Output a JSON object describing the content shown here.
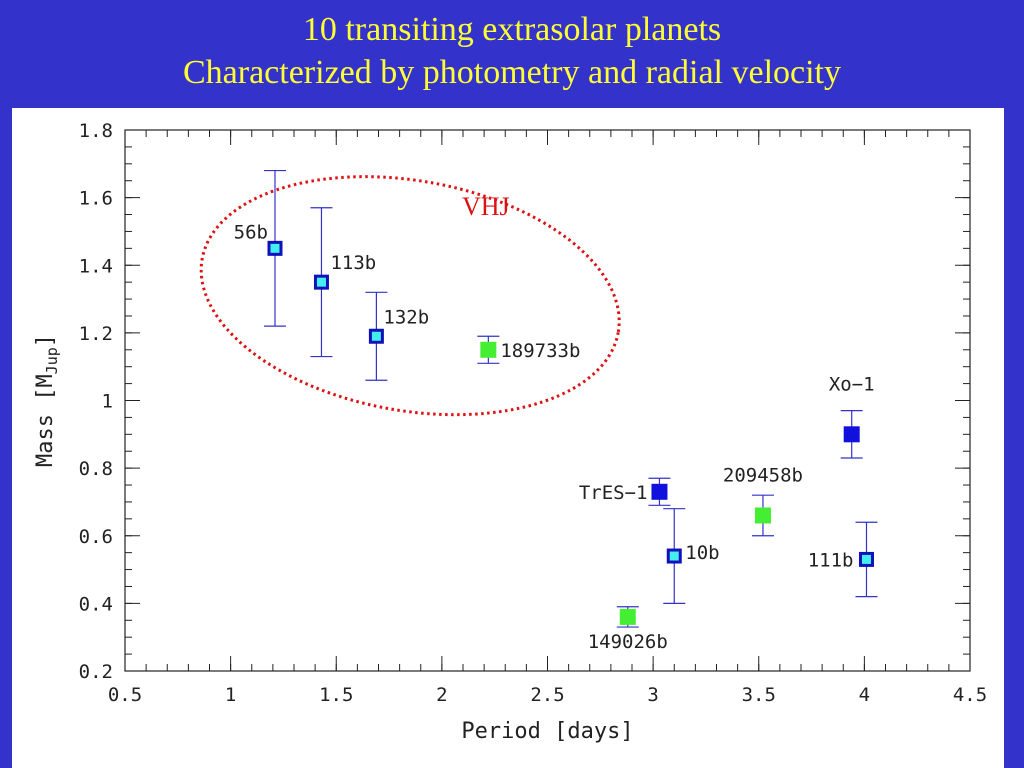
{
  "slide": {
    "title_line1": "10 transiting extrasolar planets",
    "title_line2": "Characterized by photometry and radial velocity"
  },
  "chart_data": {
    "type": "scatter",
    "xlabel": "Period [days]",
    "ylabel": "Mass [MJup]",
    "ylabel_main": "Mass [M",
    "ylabel_sub": "Jup",
    "ylabel_end": "]",
    "xlim": [
      0.5,
      4.5
    ],
    "ylim": [
      0.2,
      1.8
    ],
    "xticks": [
      0.5,
      1,
      1.5,
      2,
      2.5,
      3,
      3.5,
      4,
      4.5
    ],
    "yticks": [
      0.2,
      0.4,
      0.6,
      0.8,
      1,
      1.2,
      1.4,
      1.6,
      1.8
    ],
    "xtick_labels": [
      "0.5",
      "1",
      "1.5",
      "2",
      "2.5",
      "3",
      "3.5",
      "4",
      "4.5"
    ],
    "ytick_labels": [
      "0.2",
      "0.4",
      "0.6",
      "0.8",
      "1",
      "1.2",
      "1.4",
      "1.6",
      "1.8"
    ],
    "colors": {
      "cyan_marker": "#44eeee",
      "cyan_edge": "#1111bb",
      "green_marker": "#44ee33",
      "blue_marker": "#1111dd",
      "errorbar": "#3333cc",
      "ellipse": "#dd1111"
    },
    "points": [
      {
        "label": "56b",
        "x": 1.21,
        "y": 1.45,
        "yerr_low": 0.23,
        "yerr_high": 0.23,
        "style": "cyan"
      },
      {
        "label": "113b",
        "x": 1.43,
        "y": 1.35,
        "yerr_low": 0.22,
        "yerr_high": 0.22,
        "style": "cyan"
      },
      {
        "label": "132b",
        "x": 1.69,
        "y": 1.19,
        "yerr_low": 0.13,
        "yerr_high": 0.13,
        "style": "cyan"
      },
      {
        "label": "189733b",
        "x": 2.22,
        "y": 1.15,
        "yerr_low": 0.04,
        "yerr_high": 0.04,
        "style": "green"
      },
      {
        "label": "Xo−1",
        "x": 3.94,
        "y": 0.9,
        "yerr_low": 0.07,
        "yerr_high": 0.07,
        "style": "blue"
      },
      {
        "label": "209458b",
        "x": 3.52,
        "y": 0.66,
        "yerr_low": 0.06,
        "yerr_high": 0.06,
        "style": "green"
      },
      {
        "label": "TrES−1",
        "x": 3.03,
        "y": 0.73,
        "yerr_low": 0.04,
        "yerr_high": 0.04,
        "style": "blue"
      },
      {
        "label": "10b",
        "x": 3.1,
        "y": 0.54,
        "yerr_low": 0.14,
        "yerr_high": 0.14,
        "style": "cyan"
      },
      {
        "label": "111b",
        "x": 4.01,
        "y": 0.53,
        "yerr_low": 0.11,
        "yerr_high": 0.11,
        "style": "cyan"
      },
      {
        "label": "149026b",
        "x": 2.88,
        "y": 0.36,
        "yerr_low": 0.03,
        "yerr_high": 0.03,
        "style": "green"
      }
    ],
    "annotation": {
      "text": "VHJ",
      "region_x": [
        0.85,
        2.85
      ],
      "region_y": [
        0.97,
        1.65
      ]
    }
  }
}
